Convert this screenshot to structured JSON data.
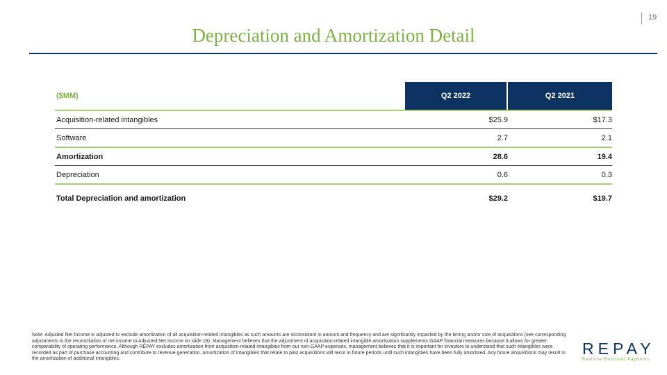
{
  "slide": {
    "title": "Depreciation and Amortization Detail",
    "page_number": "19"
  },
  "table": {
    "unit_label": "($MM)",
    "columns": [
      "Q2 2022",
      "Q2 2021"
    ],
    "rows": [
      {
        "label": "Acquisition-related intangibles",
        "q2_2022": "$25.9",
        "q2_2021": "$17.3",
        "bold": false
      },
      {
        "label": "Software",
        "q2_2022": "2.7",
        "q2_2021": "2.1",
        "bold": false
      },
      {
        "label": "Amortization",
        "q2_2022": "28.6",
        "q2_2021": "19.4",
        "bold": true
      },
      {
        "label": "Depreciation",
        "q2_2022": "0.6",
        "q2_2021": "0.3",
        "bold": false
      }
    ],
    "total": {
      "label": "Total Depreciation and amortization",
      "q2_2022": "$29.2",
      "q2_2021": "$19.7"
    }
  },
  "note": "Note: Adjusted Net Income is adjusted to exclude amortization of all acquisition-related intangibles as such amounts are inconsistent in amount and frequency and are significantly impacted by the timing and/or size of acquisitions (see corresponding adjustments in the reconciliation of net income to Adjusted Net Income on slide 18). Management believes that the adjustment of acquisition-related intangible amortization supplements GAAP financial measures because it allows for greater comparability of operating performance. Although REPAY excludes amortization from acquisition-related intangibles from our non-GAAP expenses, management believes that it is important for investors to understand that such intangibles were recorded as part of purchase accounting and contribute to revenue generation. Amortization of intangibles that relate to past acquisitions will recur in future periods until such intangibles have been fully amortized. Any future acquisitions may result in the amortization of additional intangibles.",
  "logo": {
    "wordmark": "REPAY",
    "tagline": "Realtime Electronic Payments",
    "colors": {
      "navy": "#0d3362",
      "green": "#7cb342"
    }
  }
}
